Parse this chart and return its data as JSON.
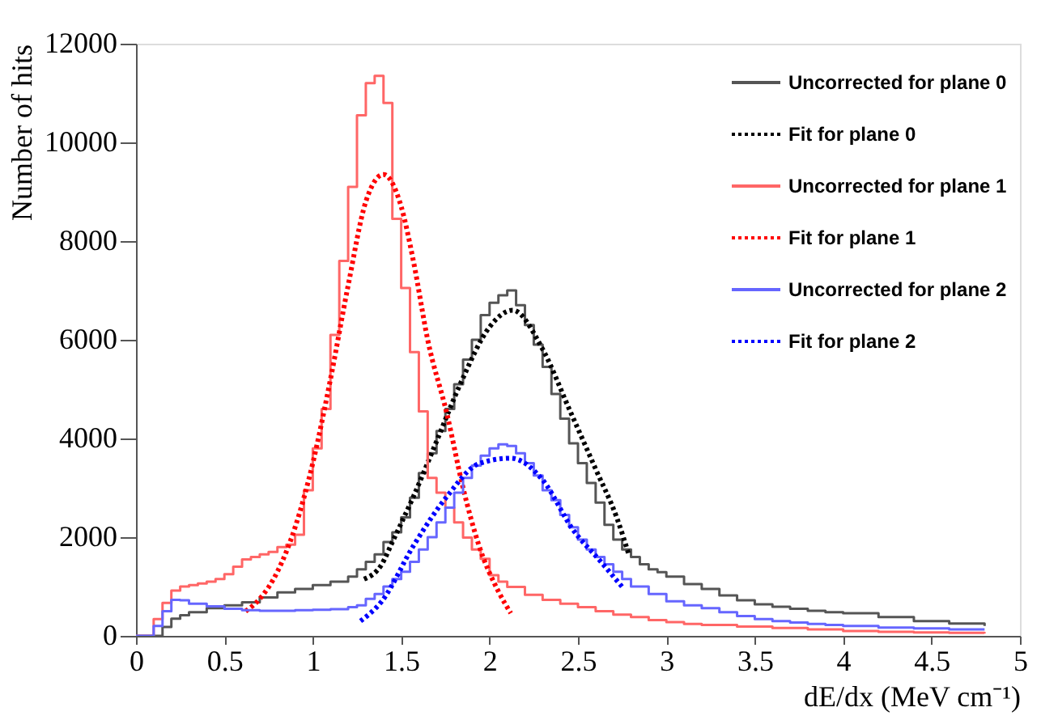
{
  "chart_data": {
    "type": "step",
    "xlabel": "dE/dx (MeV cm⁻¹)",
    "ylabel": "Number of hits",
    "xlim": [
      0,
      5
    ],
    "ylim": [
      0,
      12000
    ],
    "xticks": [
      0,
      0.5,
      1,
      1.5,
      2,
      2.5,
      3,
      3.5,
      4,
      4.5,
      5
    ],
    "yticks": [
      0,
      2000,
      4000,
      6000,
      8000,
      10000,
      12000
    ],
    "legend": "top right",
    "grid": false,
    "series": [
      {
        "name": "Uncorrected for plane 0",
        "color": "#555555",
        "line_style": "solid",
        "x": [
          0,
          0.15,
          0.2,
          0.25,
          0.3,
          0.4,
          0.5,
          0.6,
          0.7,
          0.8,
          0.9,
          1.0,
          1.1,
          1.2,
          1.25,
          1.3,
          1.35,
          1.4,
          1.45,
          1.5,
          1.55,
          1.6,
          1.65,
          1.7,
          1.75,
          1.8,
          1.85,
          1.9,
          1.95,
          2.0,
          2.05,
          2.1,
          2.15,
          2.2,
          2.25,
          2.3,
          2.35,
          2.4,
          2.45,
          2.5,
          2.55,
          2.6,
          2.65,
          2.7,
          2.75,
          2.8,
          2.85,
          2.9,
          2.95,
          3.0,
          3.1,
          3.2,
          3.3,
          3.4,
          3.5,
          3.6,
          3.7,
          3.8,
          3.9,
          4.0,
          4.2,
          4.4,
          4.6,
          4.8
        ],
        "values": [
          0,
          180,
          350,
          420,
          480,
          560,
          620,
          680,
          780,
          880,
          950,
          1030,
          1100,
          1200,
          1350,
          1500,
          1650,
          1900,
          2100,
          2400,
          2800,
          3300,
          3700,
          4150,
          4600,
          5100,
          5600,
          6000,
          6500,
          6750,
          6900,
          7000,
          6700,
          6300,
          5900,
          5450,
          4900,
          4400,
          3900,
          3500,
          3100,
          2700,
          2250,
          1950,
          1750,
          1600,
          1450,
          1350,
          1290,
          1200,
          1050,
          950,
          820,
          720,
          640,
          590,
          550,
          510,
          480,
          460,
          380,
          300,
          250,
          200
        ]
      },
      {
        "name": "Fit for plane 0",
        "type": "line",
        "color": "#000000",
        "line_style": "dotted",
        "x": [
          1.29,
          1.39,
          1.45,
          1.57,
          1.7,
          1.84,
          2.0,
          2.13,
          2.3,
          2.45,
          2.6,
          2.72,
          2.79
        ],
        "values": [
          1150,
          1450,
          1900,
          2830,
          3940,
          5150,
          6260,
          6600,
          5810,
          4600,
          3380,
          2390,
          1620
        ]
      },
      {
        "name": "Uncorrected for plane 1",
        "color": "#ff6666",
        "line_style": "solid",
        "x": [
          0,
          0.1,
          0.15,
          0.2,
          0.25,
          0.3,
          0.35,
          0.4,
          0.45,
          0.5,
          0.55,
          0.6,
          0.65,
          0.7,
          0.75,
          0.8,
          0.85,
          0.9,
          0.95,
          1.0,
          1.05,
          1.1,
          1.15,
          1.2,
          1.25,
          1.3,
          1.35,
          1.4,
          1.45,
          1.5,
          1.55,
          1.6,
          1.65,
          1.7,
          1.75,
          1.8,
          1.85,
          1.9,
          1.95,
          2.0,
          2.05,
          2.1,
          2.2,
          2.3,
          2.4,
          2.5,
          2.6,
          2.7,
          2.8,
          2.9,
          3.0,
          3.1,
          3.2,
          3.4,
          3.6,
          3.8,
          4.0,
          4.2,
          4.4,
          4.6,
          4.8
        ],
        "values": [
          0,
          340,
          670,
          920,
          1000,
          1030,
          1060,
          1100,
          1150,
          1250,
          1400,
          1550,
          1600,
          1650,
          1700,
          1800,
          1850,
          2050,
          2950,
          3800,
          4600,
          6100,
          7600,
          9100,
          10550,
          11200,
          11350,
          10800,
          8450,
          7050,
          5750,
          4550,
          3200,
          2900,
          2600,
          2300,
          1990,
          1750,
          1560,
          1230,
          1100,
          990,
          830,
          730,
          650,
          580,
          500,
          430,
          380,
          320,
          280,
          240,
          220,
          190,
          160,
          130,
          100,
          80,
          70,
          60,
          50
        ]
      },
      {
        "name": "Fit for plane 1",
        "type": "line",
        "color": "#ff0000",
        "line_style": "dotted",
        "x": [
          0.62,
          0.7,
          0.8,
          0.9,
          1.0,
          1.1,
          1.2,
          1.3,
          1.4,
          1.5,
          1.57,
          1.65,
          1.76,
          1.85,
          1.94,
          2.05,
          2.12
        ],
        "values": [
          500,
          750,
          1300,
          2200,
          3500,
          5200,
          7100,
          8800,
          9350,
          8700,
          7580,
          6000,
          4480,
          3000,
          1830,
          900,
          460
        ]
      },
      {
        "name": "Uncorrected for plane 2",
        "color": "#6666ff",
        "line_style": "solid",
        "x": [
          0,
          0.1,
          0.15,
          0.2,
          0.25,
          0.3,
          0.4,
          0.5,
          0.6,
          0.7,
          0.8,
          0.9,
          1.0,
          1.1,
          1.2,
          1.25,
          1.3,
          1.35,
          1.4,
          1.45,
          1.5,
          1.55,
          1.6,
          1.65,
          1.7,
          1.75,
          1.8,
          1.85,
          1.9,
          1.95,
          2.0,
          2.05,
          2.1,
          2.15,
          2.2,
          2.25,
          2.3,
          2.35,
          2.4,
          2.45,
          2.5,
          2.55,
          2.6,
          2.65,
          2.7,
          2.75,
          2.8,
          2.9,
          3.0,
          3.1,
          3.2,
          3.3,
          3.4,
          3.5,
          3.6,
          3.7,
          3.8,
          3.9,
          4.0,
          4.2,
          4.4,
          4.6,
          4.8
        ],
        "values": [
          0,
          200,
          500,
          730,
          720,
          650,
          600,
          550,
          520,
          510,
          510,
          520,
          530,
          540,
          580,
          620,
          750,
          850,
          1000,
          1150,
          1300,
          1500,
          1750,
          2000,
          2300,
          2600,
          2900,
          3200,
          3450,
          3650,
          3800,
          3880,
          3850,
          3700,
          3500,
          3250,
          2950,
          2750,
          2450,
          2200,
          1950,
          1750,
          1600,
          1450,
          1300,
          1150,
          1000,
          850,
          700,
          620,
          560,
          480,
          400,
          340,
          300,
          270,
          240,
          220,
          200,
          170,
          150,
          130,
          130
        ]
      },
      {
        "name": "Fit for plane 2",
        "type": "line",
        "color": "#0000ff",
        "line_style": "dotted",
        "x": [
          1.27,
          1.39,
          1.57,
          1.76,
          1.94,
          2.12,
          2.3,
          2.47,
          2.63,
          2.76
        ],
        "values": [
          300,
          700,
          1830,
          2830,
          3490,
          3600,
          3160,
          2160,
          1500,
          950
        ]
      }
    ]
  }
}
